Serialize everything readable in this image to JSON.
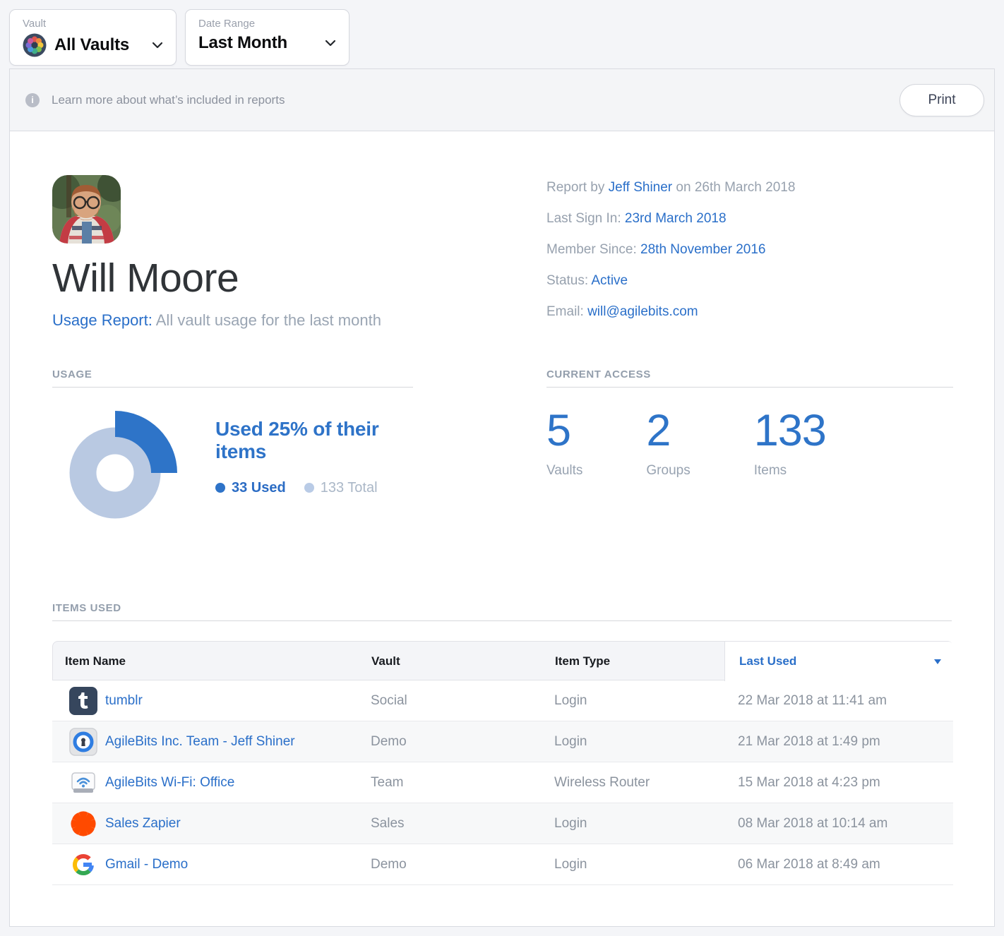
{
  "filters": {
    "vault": {
      "label": "Vault",
      "value": "All Vaults"
    },
    "date_range": {
      "label": "Date Range",
      "value": "Last Month"
    }
  },
  "info_bar": {
    "text": "Learn more about what’s included in reports",
    "print_label": "Print"
  },
  "profile": {
    "name": "Will Moore",
    "report_label": "Usage Report:",
    "report_desc": " All vault usage for the last month",
    "meta": [
      {
        "label": "Report by ",
        "link": "Jeff Shiner",
        "suffix": " on 26th March 2018"
      },
      {
        "label": "Last Sign In: ",
        "link": "23rd March 2018",
        "suffix": ""
      },
      {
        "label": "Member Since: ",
        "link": "28th November 2016",
        "suffix": ""
      },
      {
        "label": "Status: ",
        "link": "Active",
        "suffix": ""
      },
      {
        "label": "Email: ",
        "link": "will@agilebits.com",
        "suffix": ""
      }
    ]
  },
  "usage": {
    "section_title": "USAGE",
    "headline": "Used 25% of their items",
    "legend": [
      {
        "label": "33 Used"
      },
      {
        "label": "133 Total"
      }
    ],
    "chart_data": {
      "type": "pie",
      "title": "Used 25% of their items",
      "used": 33,
      "total": 133,
      "percent_used": 25,
      "colors": {
        "used": "#2e74c8",
        "total": "#b9c9e2"
      }
    }
  },
  "current_access": {
    "section_title": "CURRENT ACCESS",
    "stats": [
      {
        "value": "5",
        "label": "Vaults"
      },
      {
        "value": "2",
        "label": "Groups"
      },
      {
        "value": "133",
        "label": "Items"
      }
    ]
  },
  "items": {
    "section_title": "ITEMS USED",
    "columns": [
      "Item Name",
      "Vault",
      "Item Type",
      "Last Used"
    ],
    "rows": [
      {
        "icon": "tumblr-icon",
        "name": "tumblr",
        "vault": "Social",
        "type": "Login",
        "last_used": "22 Mar 2018 at 11:41 am"
      },
      {
        "icon": "1password-icon",
        "name": "AgileBits Inc. Team - Jeff Shiner",
        "vault": "Demo",
        "type": "Login",
        "last_used": "21 Mar 2018 at 1:49 pm"
      },
      {
        "icon": "wifi-router-icon",
        "name": "AgileBits Wi-Fi: Office",
        "vault": "Team",
        "type": "Wireless Router",
        "last_used": "15 Mar 2018 at 4:23 pm"
      },
      {
        "icon": "zapier-icon",
        "name": "Sales Zapier",
        "vault": "Sales",
        "type": "Login",
        "last_used": "08 Mar 2018 at 10:14 am"
      },
      {
        "icon": "google-icon",
        "name": "Gmail - Demo",
        "vault": "Demo",
        "type": "Login",
        "last_used": "06 Mar 2018 at 8:49 am"
      }
    ]
  }
}
